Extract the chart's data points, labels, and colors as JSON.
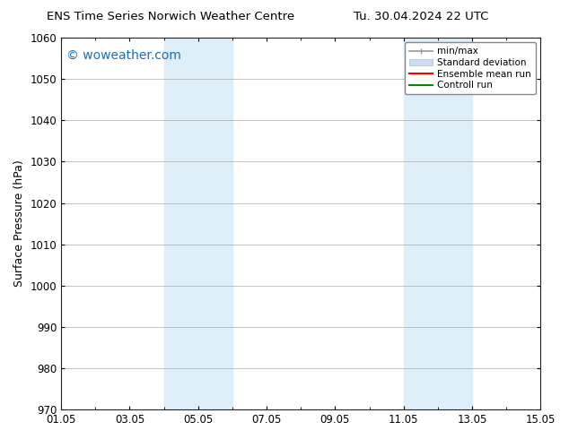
{
  "title_left": "ENS Time Series Norwich Weather Centre",
  "title_right": "Tu. 30.04.2024 22 UTC",
  "ylabel": "Surface Pressure (hPa)",
  "ylim": [
    970,
    1060
  ],
  "yticks": [
    970,
    980,
    990,
    1000,
    1010,
    1020,
    1030,
    1040,
    1050,
    1060
  ],
  "xlim_start": 0,
  "xlim_end": 14,
  "xtick_labels": [
    "01.05",
    "03.05",
    "05.05",
    "07.05",
    "09.05",
    "11.05",
    "13.05",
    "15.05"
  ],
  "xtick_positions": [
    0,
    2,
    4,
    6,
    8,
    10,
    12,
    14
  ],
  "shaded_regions": [
    {
      "xstart": 3.0,
      "xend": 5.0,
      "color": "#ddeef8"
    },
    {
      "xstart": 10.0,
      "xend": 12.0,
      "color": "#ddeef8"
    }
  ],
  "watermark_text": "© woweather.com",
  "watermark_color": "#1a6fb5",
  "background_color": "#ffffff",
  "grid_color": "#aaaaaa",
  "legend_items": [
    {
      "label": "min/max",
      "color": "#aaaaaa",
      "lw": 1.0
    },
    {
      "label": "Standard deviation",
      "color": "#ccddef",
      "patch": true
    },
    {
      "label": "Ensemble mean run",
      "color": "#ff0000",
      "lw": 1.5
    },
    {
      "label": "Controll run",
      "color": "#008800",
      "lw": 1.5
    }
  ],
  "title_fontsize": 9.5,
  "ylabel_fontsize": 9,
  "tick_fontsize": 8.5,
  "legend_fontsize": 7.5
}
